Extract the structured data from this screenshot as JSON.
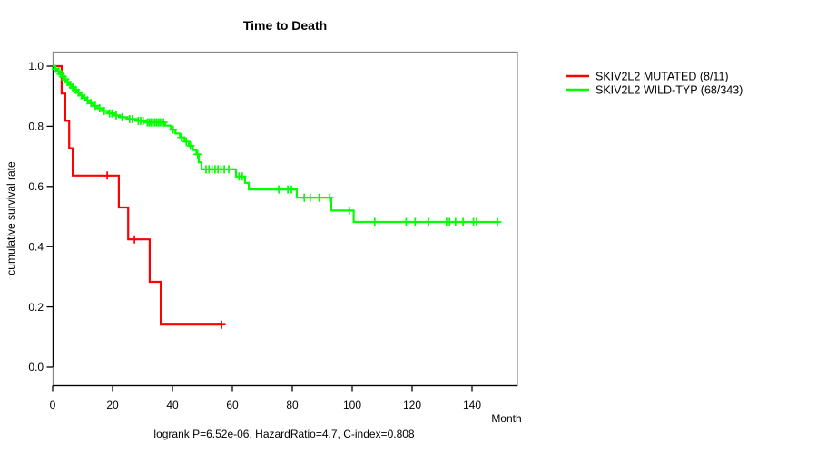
{
  "figure": {
    "title": "Time to Death",
    "ylabel": "cumulative survival rate",
    "xlabel": "Month",
    "footer": "logrank P=6.52e-06, HazardRatio=4.7, C-index=0.808"
  },
  "legend": [
    {
      "label": "SKIV2L2 MUTATED (8/11)",
      "color": "#ff0000"
    },
    {
      "label": "SKIV2L2 WILD-TYP (68/343)",
      "color": "#00ff00"
    }
  ],
  "colors": {
    "box": "#888888",
    "axis": "#000000",
    "red": "#ff0000",
    "green": "#00ff00"
  },
  "chart_data": {
    "type": "line",
    "subtype": "kaplan-meier-step",
    "title": "Time to Death",
    "xlabel": "Month",
    "ylabel": "cumulative survival rate",
    "xlim": [
      0,
      155
    ],
    "ylim": [
      0.0,
      1.0
    ],
    "xticks": [
      "0",
      "20",
      "40",
      "60",
      "80",
      "100",
      "120",
      "140"
    ],
    "yticks": [
      "0.0",
      "0.2",
      "0.4",
      "0.6",
      "0.8",
      "1.0"
    ],
    "grid": false,
    "legend_position": "right-outside",
    "annotation": "logrank P=6.52e-06, HazardRatio=4.7, C-index=0.808",
    "series": [
      {
        "name": "SKIV2L2 MUTATED (8/11)",
        "color": "#ff0000",
        "events_total": "8/11",
        "steps": [
          [
            0,
            1.0
          ],
          [
            3.0,
            0.909
          ],
          [
            4.2,
            0.818
          ],
          [
            5.5,
            0.727
          ],
          [
            6.7,
            0.636
          ],
          [
            22.1,
            0.53
          ],
          [
            25.2,
            0.424
          ],
          [
            32.4,
            0.283
          ],
          [
            36.1,
            0.141
          ]
        ],
        "end": 56.4,
        "censors": [
          [
            18.2,
            0.636
          ],
          [
            27.3,
            0.424
          ],
          [
            56.4,
            0.141
          ]
        ]
      },
      {
        "name": "SKIV2L2 WILD-TYP (68/343)",
        "color": "#00ff00",
        "events_total": "68/343",
        "steps": [
          [
            0,
            1.0
          ],
          [
            0.7,
            0.991
          ],
          [
            1.4,
            0.983
          ],
          [
            2.2,
            0.974
          ],
          [
            3.0,
            0.965
          ],
          [
            3.8,
            0.956
          ],
          [
            4.6,
            0.947
          ],
          [
            5.4,
            0.938
          ],
          [
            6.3,
            0.929
          ],
          [
            7.2,
            0.921
          ],
          [
            8.1,
            0.912
          ],
          [
            9.1,
            0.903
          ],
          [
            10.1,
            0.895
          ],
          [
            11.1,
            0.886
          ],
          [
            12.2,
            0.877
          ],
          [
            13.5,
            0.868
          ],
          [
            15.0,
            0.86
          ],
          [
            16.5,
            0.851
          ],
          [
            18.5,
            0.843
          ],
          [
            20.5,
            0.836
          ],
          [
            22.5,
            0.83
          ],
          [
            25.0,
            0.824
          ],
          [
            28.0,
            0.818
          ],
          [
            31.0,
            0.813
          ],
          [
            37.5,
            0.802
          ],
          [
            39.5,
            0.789
          ],
          [
            41.0,
            0.776
          ],
          [
            42.5,
            0.763
          ],
          [
            44.0,
            0.749
          ],
          [
            45.5,
            0.735
          ],
          [
            46.8,
            0.721
          ],
          [
            48.0,
            0.707
          ],
          [
            48.8,
            0.68
          ],
          [
            49.7,
            0.657
          ],
          [
            61.2,
            0.633
          ],
          [
            64.2,
            0.612
          ],
          [
            65.5,
            0.59
          ],
          [
            81.5,
            0.563
          ],
          [
            93.0,
            0.52
          ],
          [
            100.5,
            0.482
          ]
        ],
        "end": 149,
        "censors": [
          [
            1.0,
            0.991
          ],
          [
            2.0,
            0.983
          ],
          [
            2.7,
            0.974
          ],
          [
            3.4,
            0.965
          ],
          [
            4.2,
            0.956
          ],
          [
            5.0,
            0.947
          ],
          [
            5.9,
            0.938
          ],
          [
            6.8,
            0.929
          ],
          [
            7.7,
            0.921
          ],
          [
            8.6,
            0.912
          ],
          [
            9.6,
            0.903
          ],
          [
            10.6,
            0.895
          ],
          [
            11.6,
            0.886
          ],
          [
            12.8,
            0.877
          ],
          [
            14.2,
            0.868
          ],
          [
            15.7,
            0.86
          ],
          [
            17.2,
            0.851
          ],
          [
            19.0,
            0.843
          ],
          [
            19.8,
            0.843
          ],
          [
            21.2,
            0.836
          ],
          [
            23.2,
            0.83
          ],
          [
            25.7,
            0.824
          ],
          [
            26.6,
            0.824
          ],
          [
            28.6,
            0.818
          ],
          [
            29.4,
            0.818
          ],
          [
            30.2,
            0.818
          ],
          [
            31.6,
            0.813
          ],
          [
            32.2,
            0.813
          ],
          [
            32.8,
            0.813
          ],
          [
            33.4,
            0.813
          ],
          [
            34.0,
            0.813
          ],
          [
            34.6,
            0.813
          ],
          [
            35.2,
            0.813
          ],
          [
            35.8,
            0.813
          ],
          [
            36.4,
            0.813
          ],
          [
            37.0,
            0.813
          ],
          [
            40.2,
            0.789
          ],
          [
            43.0,
            0.763
          ],
          [
            44.6,
            0.749
          ],
          [
            46.0,
            0.735
          ],
          [
            48.4,
            0.707
          ],
          [
            51.2,
            0.657
          ],
          [
            52.2,
            0.657
          ],
          [
            53.2,
            0.657
          ],
          [
            54.2,
            0.657
          ],
          [
            55.2,
            0.657
          ],
          [
            56.2,
            0.657
          ],
          [
            57.3,
            0.657
          ],
          [
            58.8,
            0.657
          ],
          [
            62.2,
            0.633
          ],
          [
            63.3,
            0.633
          ],
          [
            75.5,
            0.59
          ],
          [
            78.5,
            0.59
          ],
          [
            79.7,
            0.59
          ],
          [
            84.0,
            0.563
          ],
          [
            86.0,
            0.563
          ],
          [
            89.0,
            0.563
          ],
          [
            92.5,
            0.563
          ],
          [
            99.0,
            0.52
          ],
          [
            107.5,
            0.482
          ],
          [
            118.0,
            0.482
          ],
          [
            121.0,
            0.482
          ],
          [
            125.5,
            0.482
          ],
          [
            131.5,
            0.482
          ],
          [
            132.5,
            0.482
          ],
          [
            134.5,
            0.482
          ],
          [
            137.0,
            0.482
          ],
          [
            140.5,
            0.482
          ],
          [
            141.5,
            0.482
          ],
          [
            148.5,
            0.482
          ]
        ]
      }
    ]
  }
}
